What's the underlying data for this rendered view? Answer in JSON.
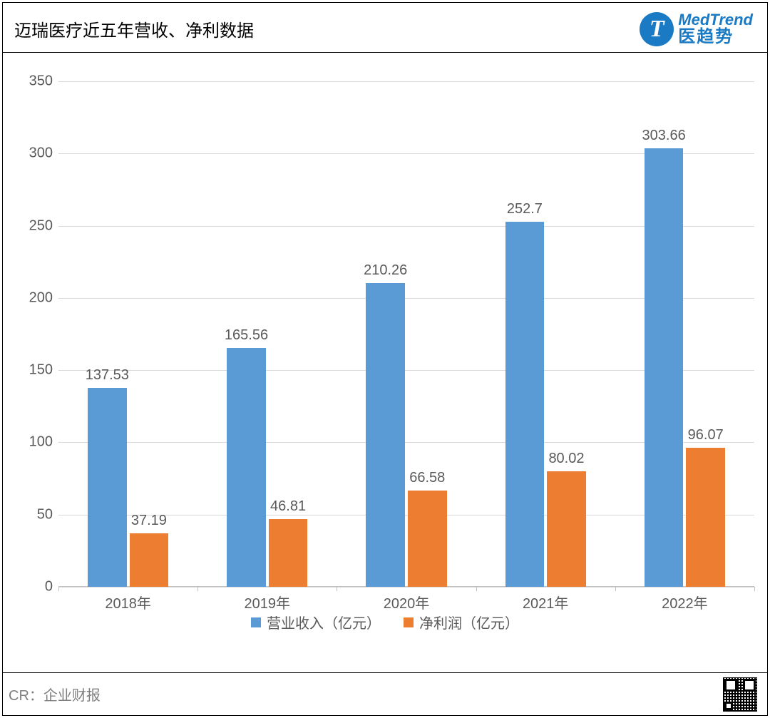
{
  "header": {
    "title": "迈瑞医疗近五年营收、净利数据",
    "title_fontsize": 24,
    "title_color": "#000000",
    "logo": {
      "letter": "T",
      "en": "MedTrend",
      "cn": "医趋势",
      "color": "#1a7ac4"
    }
  },
  "chart": {
    "type": "grouped-bar",
    "categories": [
      "2018年",
      "2019年",
      "2020年",
      "2021年",
      "2022年"
    ],
    "series": [
      {
        "name": "营业收入（亿元）",
        "color": "#5b9bd5",
        "values": [
          137.53,
          165.56,
          210.26,
          252.7,
          303.66
        ]
      },
      {
        "name": "净利润（亿元）",
        "color": "#ed7d31",
        "values": [
          37.19,
          46.81,
          66.58,
          80.02,
          96.07
        ]
      }
    ],
    "ylim": [
      0,
      350
    ],
    "ytick_step": 50,
    "grid_color": "#d9d9d9",
    "axis_color": "#bfbfbf",
    "background_color": "#ffffff",
    "tick_fontsize": 20,
    "label_fontsize": 20,
    "legend_fontsize": 20,
    "bar_gap_ratio": 0.02,
    "group_width_ratio": 0.58
  },
  "footer": {
    "credit": "CR：企业财报",
    "credit_color": "#7f7f7f",
    "credit_fontsize": 20
  }
}
